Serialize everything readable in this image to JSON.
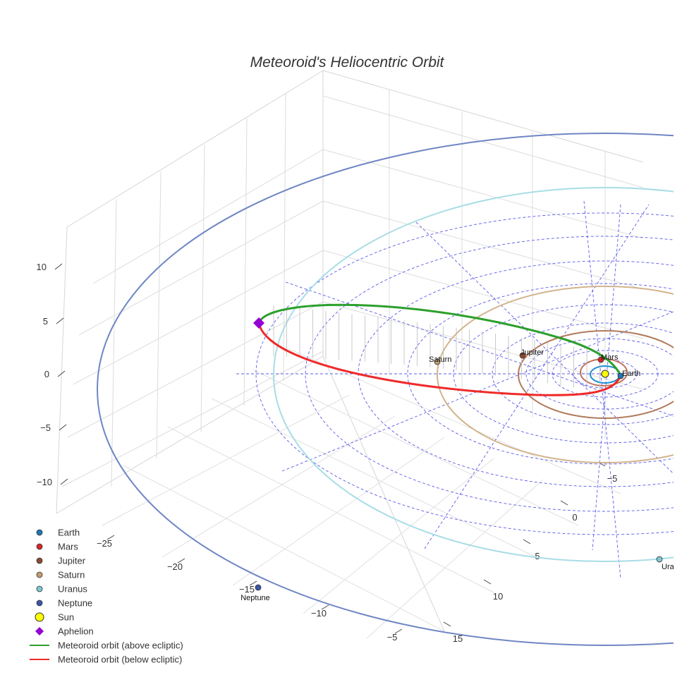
{
  "chart_data": {
    "type": "scatter",
    "title": "Meteoroid's Heliocentric Orbit",
    "axes": {
      "x_ticks": [
        "−25",
        "−20",
        "−15",
        "−10",
        "−5"
      ],
      "y_ticks": [
        "−5",
        "0",
        "5",
        "10",
        "15"
      ],
      "z_ticks": [
        "10",
        "5",
        "0",
        "−5",
        "−10"
      ]
    },
    "grid": true,
    "ecliptic_grid": true,
    "planets": [
      {
        "name": "Earth",
        "label": "Earth",
        "color": "#1f77b4"
      },
      {
        "name": "Mars",
        "label": "Mars",
        "color": "#d62728"
      },
      {
        "name": "Jupiter",
        "label": "Jupiter",
        "color": "#8c4a2f"
      },
      {
        "name": "Saturn",
        "label": "Saturn",
        "color": "#c49c6c"
      },
      {
        "name": "Uranus",
        "label": "Uranus",
        "color": "#7ec8d3"
      },
      {
        "name": "Neptune",
        "label": "Neptune",
        "color": "#3b55a8"
      }
    ],
    "orbit_colors": {
      "Earth": "#1f8fcf",
      "Mars": "#c0705a",
      "Jupiter": "#b07a5c",
      "Saturn": "#d2b48c",
      "Uranus": "#a8dde6",
      "Neptune": "#6f86c4"
    },
    "sun": {
      "label": "Sun",
      "color": "#ffff00"
    },
    "aphelion": {
      "label": "Aphelion",
      "color": "#9400d3"
    },
    "meteoroid": {
      "above_label": "Meteoroid orbit (above ecliptic)",
      "below_label": "Meteoroid orbit (below ecliptic)",
      "above_color": "#2ca02c",
      "below_color": "#ef2a2a"
    },
    "legend": {
      "position": "bottom-left",
      "items": [
        {
          "label": "Earth",
          "kind": "dot",
          "color": "#1f77b4"
        },
        {
          "label": "Mars",
          "kind": "dot",
          "color": "#d62728"
        },
        {
          "label": "Jupiter",
          "kind": "dot",
          "color": "#8c4a2f"
        },
        {
          "label": "Saturn",
          "kind": "dot",
          "color": "#c49c6c"
        },
        {
          "label": "Uranus",
          "kind": "dot",
          "color": "#7ec8d3"
        },
        {
          "label": "Neptune",
          "kind": "dot",
          "color": "#3b55a8"
        },
        {
          "label": "Sun",
          "kind": "sun",
          "color": "#ffff00"
        },
        {
          "label": "Aphelion",
          "kind": "diamond",
          "color": "#9400d3"
        },
        {
          "label": "Meteoroid orbit (above ecliptic)",
          "kind": "line",
          "color": "#2ca02c"
        },
        {
          "label": "Meteoroid orbit (below ecliptic)",
          "kind": "line",
          "color": "#ef2a2a"
        }
      ]
    }
  }
}
